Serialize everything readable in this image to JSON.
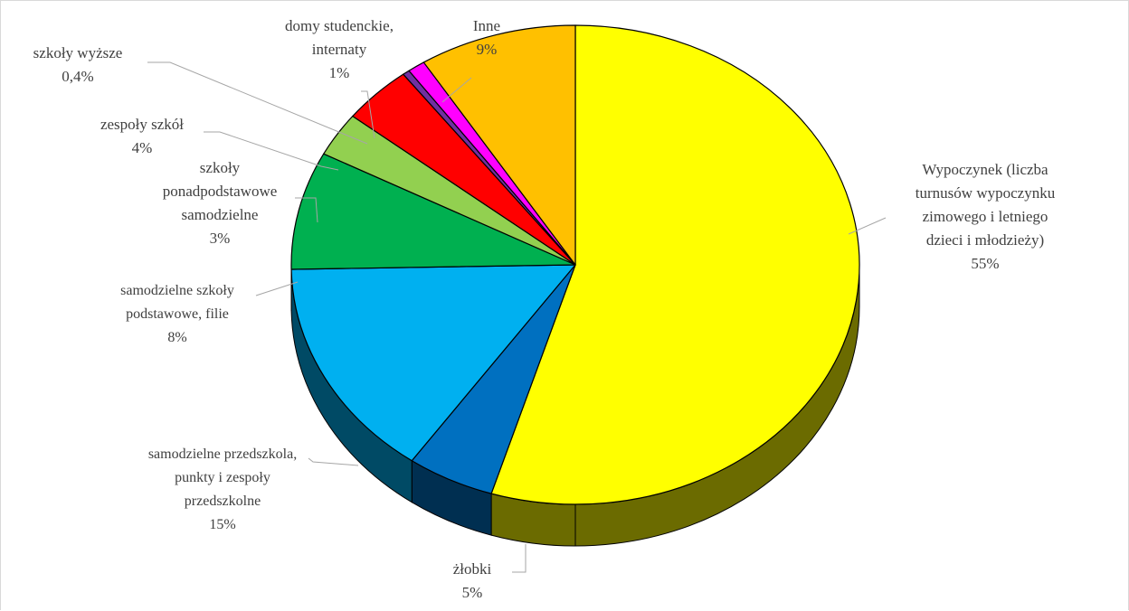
{
  "chart_data": {
    "type": "pie",
    "title": "",
    "style": "3d",
    "slices": [
      {
        "label_lines": [
          "Wypoczynek (liczba",
          "turnusów wypoczynku",
          "zimowego i letniego",
          "dzieci i młodzieży)"
        ],
        "value": 55,
        "value_label": "55%",
        "color": "#ffff00"
      },
      {
        "label_lines": [
          "żłobki"
        ],
        "value": 5,
        "value_label": "5%",
        "color": "#0070c0"
      },
      {
        "label_lines": [
          "samodzielne przedszkola,",
          "punkty i zespoły",
          "przedszkolne"
        ],
        "value": 15,
        "value_label": "15%",
        "color": "#00b0f0"
      },
      {
        "label_lines": [
          "samodzielne szkoły",
          "podstawowe, filie"
        ],
        "value": 8,
        "value_label": "8%",
        "color": "#00b050"
      },
      {
        "label_lines": [
          "szkoły",
          "ponadpodstawowe",
          "samodzielne"
        ],
        "value": 3,
        "value_label": "3%",
        "color": "#92d050"
      },
      {
        "label_lines": [
          "zespoły szkół"
        ],
        "value": 4,
        "value_label": "4%",
        "color": "#ff0000"
      },
      {
        "label_lines": [
          "szkoły wyższe"
        ],
        "value": 0.4,
        "value_label": "0,4%",
        "color": "#7030a0"
      },
      {
        "label_lines": [
          "domy studenckie,",
          "internaty"
        ],
        "value": 1,
        "value_label": "1%",
        "color": "#ff00ff"
      },
      {
        "label_lines": [
          "Inne"
        ],
        "value": 9,
        "value_label": "9%",
        "color": "#ffc000"
      }
    ]
  }
}
